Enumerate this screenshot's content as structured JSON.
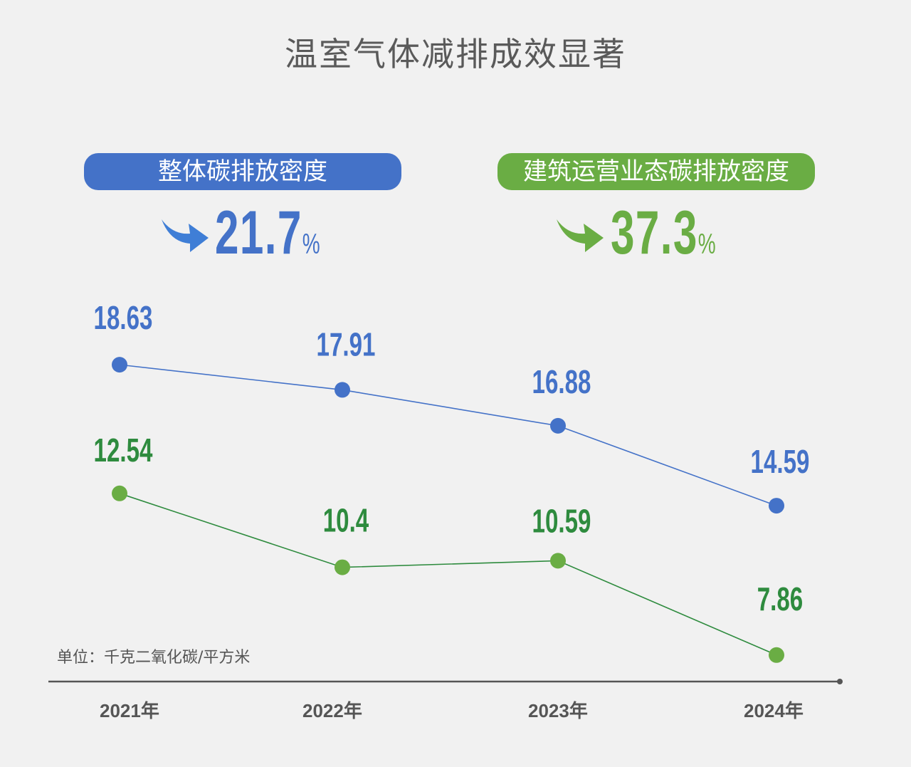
{
  "title": "温室气体减排成效显著",
  "summary": [
    {
      "label": "整体碳排放密度",
      "value": "21.7",
      "unit": "%",
      "color": "#4472c8"
    },
    {
      "label": "建筑运营业态碳排放密度",
      "value": "37.3",
      "unit": "%",
      "color": "#6aad44"
    }
  ],
  "chart_data": {
    "type": "line",
    "title": "温室气体减排成效显著",
    "unit_label": "单位：千克二氧化碳/平方米",
    "categories": [
      "2021年",
      "2022年",
      "2023年",
      "2024年"
    ],
    "series": [
      {
        "name": "整体碳排放密度",
        "values": [
          18.63,
          17.91,
          16.88,
          14.59
        ],
        "labels": [
          "18.63",
          "17.91",
          "16.88",
          "14.59"
        ],
        "line_color": "#4472c8",
        "label_color": "#4472c8"
      },
      {
        "name": "建筑运营业态碳排放密度",
        "values": [
          12.54,
          10.4,
          10.59,
          7.86
        ],
        "labels": [
          "12.54",
          "10.4",
          "10.59",
          "7.86"
        ],
        "line_color": "#2e8b3e",
        "marker_color": "#6aad44",
        "label_color": "#2e8b3e"
      }
    ],
    "grid": false
  }
}
